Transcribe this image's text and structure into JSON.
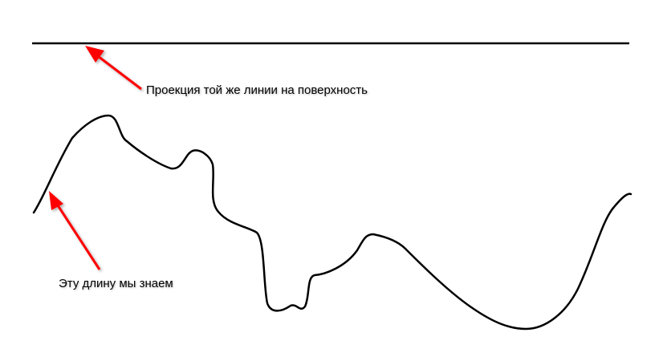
{
  "annotations": {
    "projection_label": "Проекция той же линии на поверхность",
    "curve_label": "Эту длину мы знаем"
  },
  "colors": {
    "line": "#000000",
    "arrow": "#ff0000"
  }
}
